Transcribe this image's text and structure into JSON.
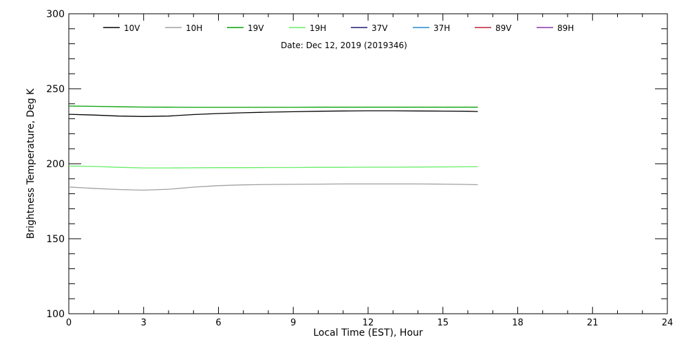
{
  "chart_data": {
    "type": "line",
    "subtitle": "Date: Dec 12, 2019 (2019346)",
    "xlabel": "Local Time (EST), Hour",
    "ylabel": "Brightness Temperature, Deg K",
    "xlim": [
      0,
      24
    ],
    "ylim": [
      100,
      300
    ],
    "xticks": [
      0,
      3,
      6,
      9,
      12,
      15,
      18,
      21,
      24
    ],
    "yticks": [
      100,
      150,
      200,
      250,
      300
    ],
    "grid": false,
    "legend_position": "top",
    "series": [
      {
        "name": "10V",
        "color": "#000000",
        "x": [
          0,
          1,
          2,
          3,
          4,
          5,
          6,
          7,
          8,
          9,
          10,
          11,
          12,
          13,
          14,
          15,
          16,
          16.4
        ],
        "y": [
          233,
          232.5,
          231.8,
          231.5,
          231.8,
          232.8,
          233.5,
          234,
          234.4,
          234.7,
          235,
          235.2,
          235.3,
          235.3,
          235.2,
          235.1,
          235,
          234.8
        ]
      },
      {
        "name": "10H",
        "color": "#a0a0a0",
        "x": [
          0,
          1,
          2,
          3,
          4,
          5,
          6,
          7,
          8,
          9,
          10,
          11,
          12,
          13,
          14,
          15,
          16,
          16.4
        ],
        "y": [
          184.5,
          183.6,
          182.8,
          182.4,
          183,
          184.4,
          185.4,
          185.9,
          186.2,
          186.3,
          186.4,
          186.5,
          186.5,
          186.5,
          186.5,
          186.4,
          186.2,
          186
        ]
      },
      {
        "name": "19V",
        "color": "#00a000",
        "x": [
          0,
          1,
          2,
          3,
          4,
          5,
          6,
          7,
          8,
          9,
          10,
          11,
          12,
          13,
          14,
          15,
          16,
          16.4
        ],
        "y": [
          238.5,
          238.3,
          238.0,
          237.8,
          237.7,
          237.6,
          237.6,
          237.6,
          237.6,
          237.6,
          237.7,
          237.7,
          237.7,
          237.7,
          237.7,
          237.7,
          237.7,
          237.7
        ]
      },
      {
        "name": "19H",
        "color": "#66ee66",
        "x": [
          0,
          1,
          2,
          3,
          4,
          5,
          6,
          7,
          8,
          9,
          10,
          11,
          12,
          13,
          14,
          15,
          16,
          16.4
        ],
        "y": [
          198.5,
          198.2,
          197.6,
          197.2,
          197.2,
          197.3,
          197.4,
          197.4,
          197.5,
          197.5,
          197.6,
          197.6,
          197.7,
          197.7,
          197.8,
          197.9,
          198,
          198
        ]
      },
      {
        "name": "37V",
        "color": "#1a1a6e",
        "x": [],
        "y": []
      },
      {
        "name": "37H",
        "color": "#2288cc",
        "x": [],
        "y": []
      },
      {
        "name": "89V",
        "color": "#bb2233",
        "x": [],
        "y": []
      },
      {
        "name": "89H",
        "color": "#8833aa",
        "x": [],
        "y": []
      }
    ]
  }
}
